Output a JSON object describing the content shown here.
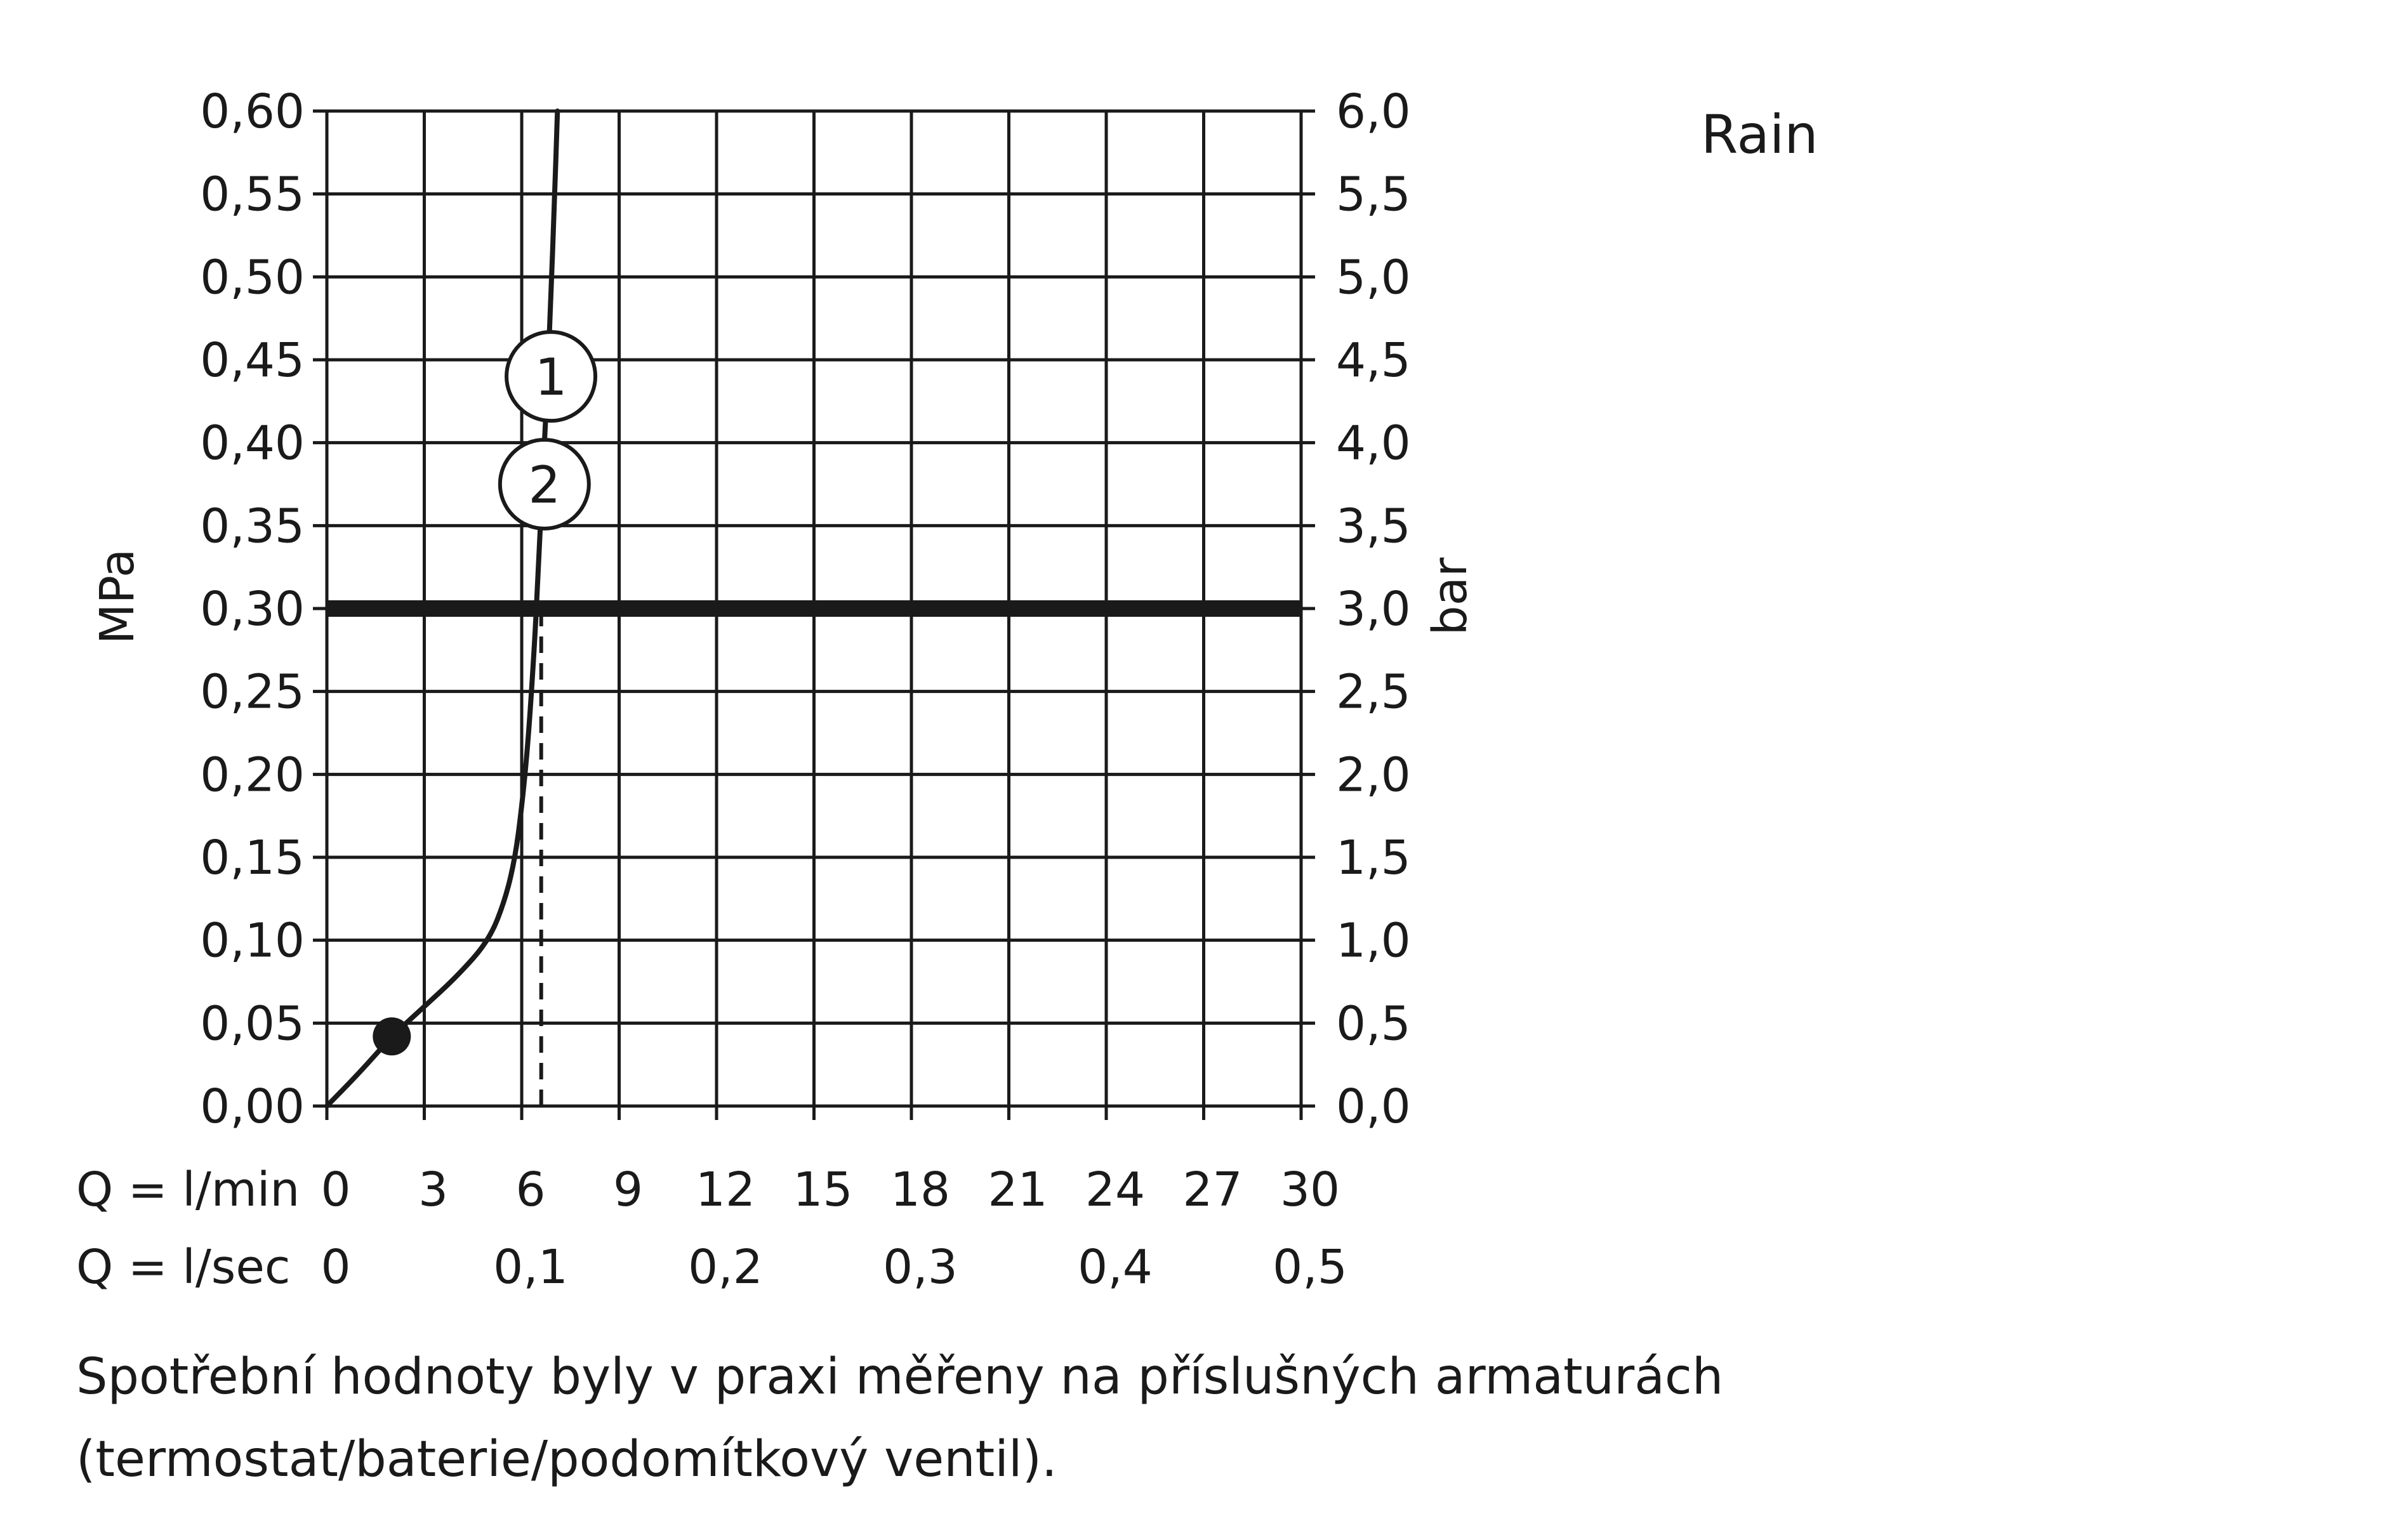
{
  "chart_data": {
    "type": "line",
    "legend_title": "Rain",
    "y_left": {
      "label": "MPa",
      "lim": [
        0,
        0.6
      ],
      "ticks": [
        0,
        0.05,
        0.1,
        0.15,
        0.2,
        0.25,
        0.3,
        0.35,
        0.4,
        0.45,
        0.5,
        0.55,
        0.6
      ],
      "tick_labels": [
        "0,00",
        "0,05",
        "0,10",
        "0,15",
        "0,20",
        "0,25",
        "0,30",
        "0,35",
        "0,40",
        "0,45",
        "0,50",
        "0,55",
        "0,60"
      ]
    },
    "y_right": {
      "label": "bar",
      "lim": [
        0,
        6
      ],
      "ticks": [
        0,
        0.5,
        1,
        1.5,
        2,
        2.5,
        3,
        3.5,
        4,
        4.5,
        5,
        5.5,
        6
      ],
      "tick_labels": [
        "0,0",
        "0,5",
        "1,0",
        "1,5",
        "2,0",
        "2,5",
        "3,0",
        "3,5",
        "4,0",
        "4,5",
        "5,0",
        "5,5",
        "6,0"
      ]
    },
    "x_lmin": {
      "label": "Q = l/min",
      "lim": [
        0,
        30
      ],
      "ticks": [
        0,
        3,
        6,
        9,
        12,
        15,
        18,
        21,
        24,
        27,
        30
      ],
      "tick_labels": [
        "0",
        "3",
        "6",
        "9",
        "12",
        "15",
        "18",
        "21",
        "24",
        "27",
        "30"
      ]
    },
    "x_lsec": {
      "label": "Q = l/sec",
      "ticks_lmin": [
        0,
        6,
        12,
        18,
        24,
        30
      ],
      "tick_labels": [
        "0",
        "0,1",
        "0,2",
        "0,3",
        "0,4",
        "0,5"
      ]
    },
    "grid": true,
    "reference_line": {
      "y": 0.3
    },
    "dashed_line": {
      "x": 6.6,
      "y_from": 0,
      "y_to": 0.3
    },
    "marker_point": {
      "x": 2,
      "y": 0.042
    },
    "series": [
      {
        "name": "1",
        "points": [
          [
            0,
            0
          ],
          [
            1,
            0.02
          ],
          [
            2,
            0.042
          ],
          [
            3,
            0.06
          ],
          [
            4,
            0.078
          ],
          [
            5,
            0.1
          ],
          [
            5.5,
            0.125
          ],
          [
            5.8,
            0.15
          ],
          [
            6.0,
            0.18
          ],
          [
            6.2,
            0.22
          ],
          [
            6.4,
            0.28
          ],
          [
            6.5,
            0.32
          ],
          [
            6.6,
            0.36
          ],
          [
            6.7,
            0.4
          ],
          [
            6.8,
            0.44
          ],
          [
            6.9,
            0.49
          ],
          [
            7.0,
            0.54
          ],
          [
            7.1,
            0.6
          ]
        ],
        "label_at": [
          6.9,
          0.44
        ]
      },
      {
        "name": "2",
        "label_at": [
          6.7,
          0.375
        ]
      }
    ]
  },
  "footnote": "Spotřební hodnoty byly v praxi měřeny na příslušných armaturách (termostat/baterie/podomítkový ventil)."
}
